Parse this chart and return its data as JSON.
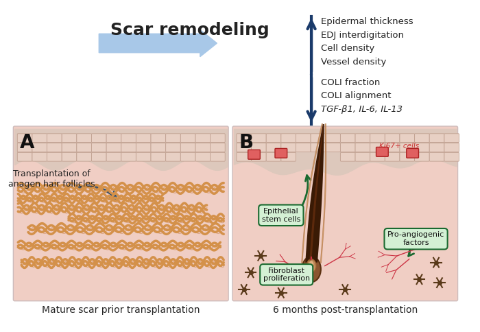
{
  "title": "Scar remodeling",
  "panel_A_label": "A",
  "panel_B_label": "B",
  "panel_A_caption": "Mature scar prior transplantation",
  "panel_B_caption": "6 months post-transplantation",
  "annotation_A": "Transplantation of\nanagen hair follicles",
  "up_arrow_labels": [
    "Epidermal thickness",
    "EDJ interdigitation",
    "Cell density",
    "Vessel density"
  ],
  "down_arrow_labels": [
    "COLI fraction",
    "COLI alignment",
    "TGF-β1, IL-6, IL-13"
  ],
  "label_epithelial": "Epithelial\nstem cells",
  "label_fibroblast": "Fibroblast\nproliferation",
  "label_proangiogenic": "Pro-angiogenic\nfactors",
  "label_ki67": "Ki67+ cells",
  "bg_color": "#ffffff",
  "skin_bg_color": "#f5ddd5",
  "epidermis_color": "#d4b5a8",
  "dermis_color": "#f0cec4",
  "collagen_color": "#d4914a",
  "collagen_shadow": "#c07030",
  "hair_dark": "#3a1a05",
  "hair_mid": "#6b3010",
  "hair_light": "#9b5520",
  "hair_root_color": "#c8a070",
  "arrow_blue_dark": "#1a4a7a",
  "arrow_blue_light": "#a8c8e8",
  "arrow_green": "#1a6a30",
  "box_green_fill": "#d4f0d4",
  "box_green_border": "#1a6a30",
  "ki67_color": "#cc3333",
  "vessel_color": "#cc3344",
  "fibroblast_color": "#5a3a1a",
  "cell_outline": "#8a6a5a",
  "up_arrow_color": "#1a3a6a",
  "down_arrow_color": "#1a3a6a"
}
